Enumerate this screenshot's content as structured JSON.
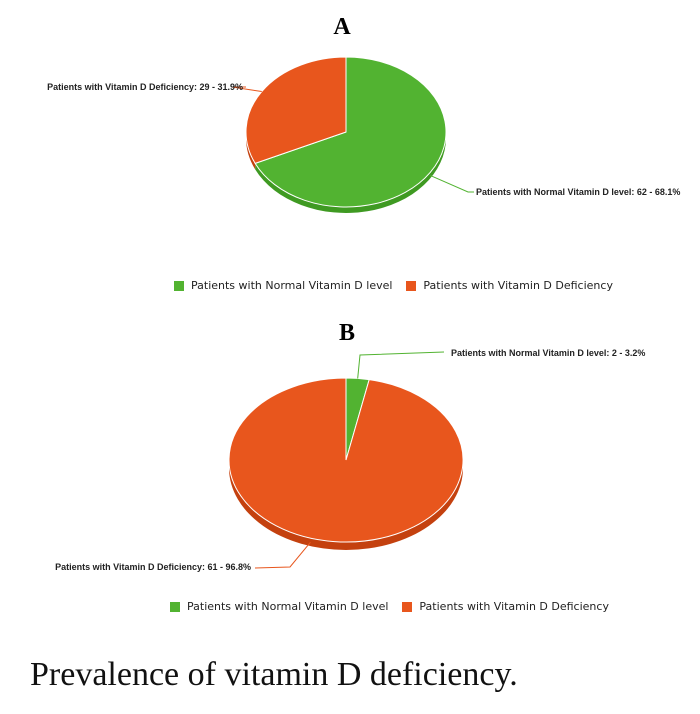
{
  "colors": {
    "normal": "#52b331",
    "normal_dark": "#3f9a22",
    "deficiency": "#e8561d",
    "deficiency_dark": "#c4410f"
  },
  "caption": "Prevalence of vitamin D deficiency.",
  "chart_data": [
    {
      "type": "pie",
      "title": "A",
      "categories": [
        "Patients with Normal Vitamin D level",
        "Patients with Vitamin D Deficiency"
      ],
      "values": [
        62,
        29
      ],
      "percentages": [
        68.1,
        31.9
      ],
      "data_labels": [
        "Patients with Normal Vitamin D level: 62 - 68.1%",
        "Patients with Vitamin D Deficiency: 29 - 31.9%"
      ],
      "legend": [
        "Patients with Normal Vitamin D level",
        "Patients with Vitamin D Deficiency"
      ],
      "legend_position": "bottom"
    },
    {
      "type": "pie",
      "title": "B",
      "categories": [
        "Patients with Normal Vitamin D level",
        "Patients with Vitamin D Deficiency"
      ],
      "values": [
        2,
        61
      ],
      "percentages": [
        3.2,
        96.8
      ],
      "data_labels": [
        "Patients with Normal Vitamin D level: 2 - 3.2%",
        "Patients with Vitamin D Deficiency: 61 - 96.8%"
      ],
      "legend": [
        "Patients with Normal Vitamin D level",
        "Patients with Vitamin D Deficiency"
      ],
      "legend_position": "bottom"
    }
  ]
}
